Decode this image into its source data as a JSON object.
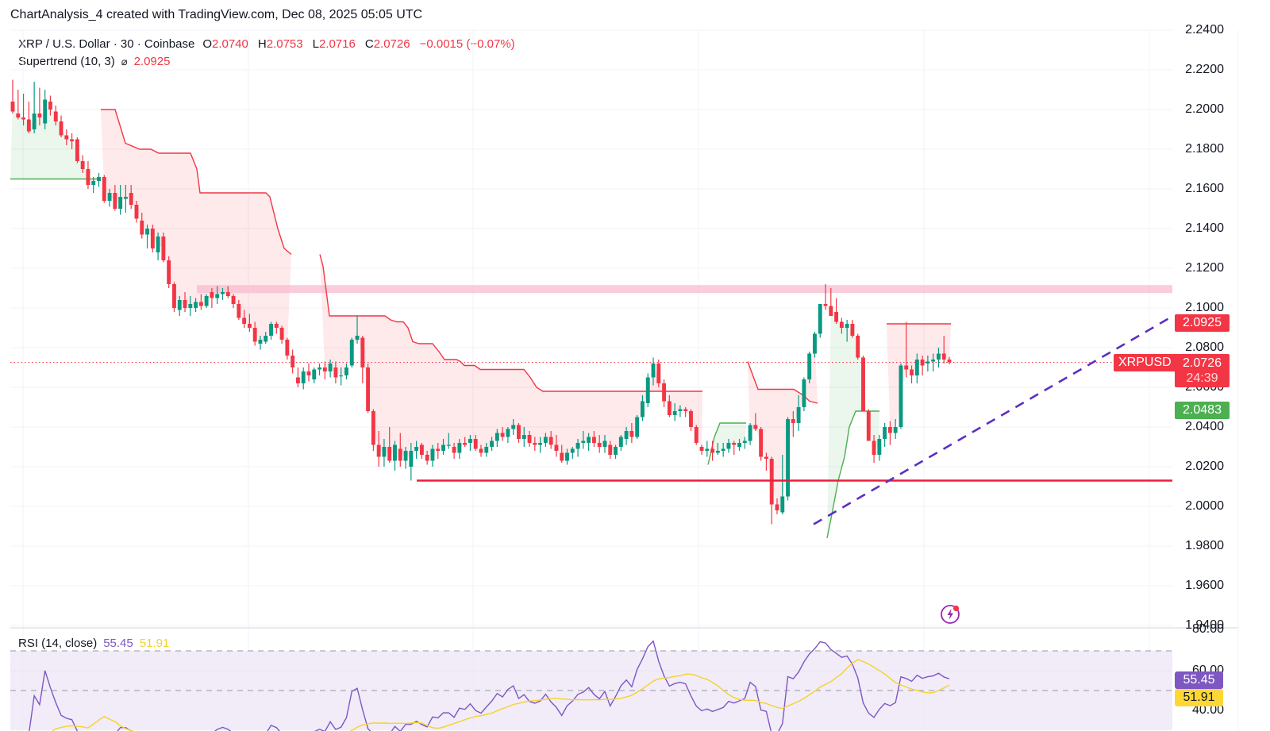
{
  "caption": "ChartAnalysis_4 created with TradingView.com, Dec 08, 2025 05:05 UTC",
  "legend": {
    "symbol": "XRP / U.S. Dollar · 30 · Coinbase",
    "o_label": "O",
    "o": "2.0740",
    "h_label": "H",
    "h": "2.0753",
    "l_label": "L",
    "l": "2.0716",
    "c_label": "C",
    "c": "2.0726",
    "change": "−0.0015 (−0.07%)",
    "indicator": "Supertrend (10, 3)",
    "indicator_icon": "⌀",
    "indicator_value": "2.0925"
  },
  "rsi_legend": {
    "label": "RSI (14, close)",
    "rsi": "55.45",
    "ma": "51.91"
  },
  "price_axis": [
    "2.2400",
    "2.2200",
    "2.2000",
    "2.1800",
    "2.1600",
    "2.1400",
    "2.1200",
    "2.1000",
    "2.0800",
    "2.0600",
    "2.0400",
    "2.0200",
    "2.0000",
    "1.9800",
    "1.9600",
    "1.9400"
  ],
  "rsi_axis": [
    "80.00",
    "60.00",
    "40.00"
  ],
  "tags": {
    "supertrend": "2.0925",
    "symbol": "XRPUSD",
    "last_price": "2.0726",
    "countdown": "24:39",
    "green": "2.0483",
    "rsi": "55.45",
    "rsi_ma": "51.91"
  },
  "colors": {
    "up": "#089981",
    "down": "#f23645",
    "supertrend_up": "#4caf50",
    "supertrend_down": "#f23645",
    "resistance_zone": "#f8bbd0",
    "support_line": "#e91e3c",
    "trendline": "#5b2fc4",
    "rsi_line": "#7e57c2",
    "rsi_ma": "#f5d22a",
    "rsi_band": "#ede7f6"
  },
  "chart_data": {
    "type": "candlestick",
    "title": "XRP / U.S. Dollar · 30 · Coinbase",
    "timeframe": "30",
    "ylim": [
      1.94,
      2.24
    ],
    "yticks": [
      2.24,
      2.22,
      2.2,
      2.18,
      2.16,
      2.14,
      2.12,
      2.1,
      2.08,
      2.06,
      2.04,
      2.02,
      2.0,
      1.98,
      1.96,
      1.94
    ],
    "annotations": {
      "resistance_zone": [
        2.1075,
        2.1115
      ],
      "support_line": 2.013,
      "rising_trendline": {
        "from": [
          1025,
          1.991
        ],
        "to": [
          1478,
          2.096
        ]
      },
      "last_price": 2.0726
    },
    "candles": [
      [
        2.204,
        2.215,
        2.198,
        2.199
      ],
      [
        2.198,
        2.21,
        2.195,
        2.196
      ],
      [
        2.196,
        2.208,
        2.192,
        2.195
      ],
      [
        2.195,
        2.204,
        2.188,
        2.189
      ],
      [
        2.19,
        2.214,
        2.188,
        2.198
      ],
      [
        2.198,
        2.211,
        2.192,
        2.196
      ],
      [
        2.193,
        2.21,
        2.19,
        2.205
      ],
      [
        2.204,
        2.207,
        2.197,
        2.2
      ],
      [
        2.199,
        2.202,
        2.192,
        2.194
      ],
      [
        2.194,
        2.197,
        2.186,
        2.187
      ],
      [
        2.187,
        2.19,
        2.182,
        2.185
      ],
      [
        2.185,
        2.188,
        2.18,
        2.184
      ],
      [
        2.185,
        2.186,
        2.173,
        2.174
      ],
      [
        2.174,
        2.177,
        2.168,
        2.17
      ],
      [
        2.17,
        2.174,
        2.16,
        2.162
      ],
      [
        2.162,
        2.166,
        2.158,
        2.164
      ],
      [
        2.164,
        2.168,
        2.161,
        2.166
      ],
      [
        2.166,
        2.167,
        2.153,
        2.154
      ],
      [
        2.154,
        2.16,
        2.151,
        2.158
      ],
      [
        2.158,
        2.162,
        2.149,
        2.15
      ],
      [
        2.15,
        2.162,
        2.147,
        2.156
      ],
      [
        2.155,
        2.162,
        2.148,
        2.156
      ],
      [
        2.158,
        2.162,
        2.15,
        2.152
      ],
      [
        2.152,
        2.154,
        2.143,
        2.145
      ],
      [
        2.144,
        2.148,
        2.135,
        2.137
      ],
      [
        2.137,
        2.142,
        2.13,
        2.14
      ],
      [
        2.14,
        2.142,
        2.128,
        2.13
      ],
      [
        2.128,
        2.138,
        2.124,
        2.136
      ],
      [
        2.136,
        2.138,
        2.123,
        2.124
      ],
      [
        2.124,
        2.126,
        2.11,
        2.112
      ],
      [
        2.112,
        2.113,
        2.098,
        2.1
      ],
      [
        2.099,
        2.106,
        2.096,
        2.104
      ],
      [
        2.104,
        2.108,
        2.098,
        2.1
      ],
      [
        2.1,
        2.106,
        2.096,
        2.102
      ],
      [
        2.1,
        2.105,
        2.098,
        2.103
      ],
      [
        2.103,
        2.107,
        2.099,
        2.101
      ],
      [
        2.101,
        2.107,
        2.1,
        2.106
      ],
      [
        2.108,
        2.11,
        2.1,
        2.105
      ],
      [
        2.105,
        2.111,
        2.102,
        2.107
      ],
      [
        2.107,
        2.11,
        2.104,
        2.108
      ],
      [
        2.108,
        2.111,
        2.105,
        2.106
      ],
      [
        2.106,
        2.107,
        2.1,
        2.102
      ],
      [
        2.102,
        2.104,
        2.094,
        2.095
      ],
      [
        2.095,
        2.099,
        2.09,
        2.092
      ],
      [
        2.092,
        2.097,
        2.088,
        2.09
      ],
      [
        2.09,
        2.093,
        2.081,
        2.083
      ],
      [
        2.082,
        2.086,
        2.079,
        2.084
      ],
      [
        2.083,
        2.088,
        2.082,
        2.086
      ],
      [
        2.086,
        2.093,
        2.084,
        2.092
      ],
      [
        2.092,
        2.093,
        2.087,
        2.09
      ],
      [
        2.09,
        2.091,
        2.082,
        2.084
      ],
      [
        2.084,
        2.085,
        2.074,
        2.076
      ],
      [
        2.076,
        2.079,
        2.067,
        2.07
      ],
      [
        2.065,
        2.07,
        2.06,
        2.062
      ],
      [
        2.062,
        2.07,
        2.059,
        2.068
      ],
      [
        2.068,
        2.072,
        2.063,
        2.066
      ],
      [
        2.064,
        2.07,
        2.062,
        2.069
      ],
      [
        2.069,
        2.072,
        2.066,
        2.07
      ],
      [
        2.07,
        2.073,
        2.064,
        2.068
      ],
      [
        2.068,
        2.074,
        2.065,
        2.072
      ],
      [
        2.07,
        2.073,
        2.062,
        2.065
      ],
      [
        2.066,
        2.07,
        2.061,
        2.066
      ],
      [
        2.066,
        2.072,
        2.064,
        2.07
      ],
      [
        2.071,
        2.085,
        2.07,
        2.084
      ],
      [
        2.084,
        2.096,
        2.082,
        2.086
      ],
      [
        2.085,
        2.086,
        2.062,
        2.07
      ],
      [
        2.07,
        2.072,
        2.047,
        2.048
      ],
      [
        2.048,
        2.049,
        2.028,
        2.031
      ],
      [
        2.031,
        2.038,
        2.02,
        2.025
      ],
      [
        2.025,
        2.034,
        2.02,
        2.03
      ],
      [
        2.03,
        2.04,
        2.022,
        2.023
      ],
      [
        2.023,
        2.033,
        2.018,
        2.031
      ],
      [
        2.029,
        2.037,
        2.02,
        2.023
      ],
      [
        2.023,
        2.03,
        2.019,
        2.028
      ],
      [
        2.02,
        2.032,
        2.013,
        2.028
      ],
      [
        2.028,
        2.033,
        2.024,
        2.03
      ],
      [
        2.031,
        2.032,
        2.024,
        2.026
      ],
      [
        2.026,
        2.028,
        2.021,
        2.023
      ],
      [
        2.023,
        2.031,
        2.02,
        2.029
      ],
      [
        2.029,
        2.032,
        2.024,
        2.028
      ],
      [
        2.028,
        2.034,
        2.026,
        2.031
      ],
      [
        2.031,
        2.037,
        2.029,
        2.031
      ],
      [
        2.03,
        2.032,
        2.024,
        2.027
      ],
      [
        2.027,
        2.034,
        2.024,
        2.032
      ],
      [
        2.032,
        2.035,
        2.03,
        2.031
      ],
      [
        2.032,
        2.036,
        2.028,
        2.034
      ],
      [
        2.034,
        2.036,
        2.028,
        2.029
      ],
      [
        2.029,
        2.031,
        2.025,
        2.027
      ],
      [
        2.027,
        2.032,
        2.025,
        2.03
      ],
      [
        2.03,
        2.035,
        2.028,
        2.033
      ],
      [
        2.033,
        2.039,
        2.03,
        2.037
      ],
      [
        2.037,
        2.04,
        2.033,
        2.035
      ],
      [
        2.035,
        2.04,
        2.032,
        2.039
      ],
      [
        2.039,
        2.044,
        2.036,
        2.041
      ],
      [
        2.041,
        2.042,
        2.032,
        2.034
      ],
      [
        2.034,
        2.04,
        2.03,
        2.036
      ],
      [
        2.036,
        2.038,
        2.03,
        2.032
      ],
      [
        2.032,
        2.035,
        2.028,
        2.031
      ],
      [
        2.031,
        2.035,
        2.027,
        2.032
      ],
      [
        2.032,
        2.037,
        2.03,
        2.035
      ],
      [
        2.035,
        2.038,
        2.029,
        2.031
      ],
      [
        2.031,
        2.036,
        2.025,
        2.028
      ],
      [
        2.027,
        2.031,
        2.022,
        2.023
      ],
      [
        2.023,
        2.029,
        2.021,
        2.027
      ],
      [
        2.027,
        2.03,
        2.024,
        2.029
      ],
      [
        2.029,
        2.034,
        2.025,
        2.032
      ],
      [
        2.032,
        2.038,
        2.029,
        2.033
      ],
      [
        2.032,
        2.037,
        2.028,
        2.035
      ],
      [
        2.035,
        2.038,
        2.03,
        2.032
      ],
      [
        2.032,
        2.036,
        2.027,
        2.03
      ],
      [
        2.03,
        2.036,
        2.027,
        2.033
      ],
      [
        2.031,
        2.033,
        2.024,
        2.026
      ],
      [
        2.026,
        2.031,
        2.024,
        2.03
      ],
      [
        2.03,
        2.036,
        2.028,
        2.035
      ],
      [
        2.034,
        2.04,
        2.031,
        2.038
      ],
      [
        2.038,
        2.042,
        2.032,
        2.035
      ],
      [
        2.035,
        2.046,
        2.034,
        2.045
      ],
      [
        2.045,
        2.056,
        2.043,
        2.053
      ],
      [
        2.052,
        2.067,
        2.05,
        2.065
      ],
      [
        2.065,
        2.075,
        2.061,
        2.072
      ],
      [
        2.072,
        2.074,
        2.06,
        2.062
      ],
      [
        2.062,
        2.064,
        2.05,
        2.053
      ],
      [
        2.053,
        2.056,
        2.045,
        2.046
      ],
      [
        2.046,
        2.052,
        2.043,
        2.048
      ],
      [
        2.048,
        2.051,
        2.045,
        2.049
      ],
      [
        2.049,
        2.05,
        2.045,
        2.048
      ],
      [
        2.048,
        2.049,
        2.038,
        2.04
      ],
      [
        2.04,
        2.041,
        2.031,
        2.032
      ],
      [
        2.03,
        2.031,
        2.026,
        2.028
      ],
      [
        2.028,
        2.033,
        2.025,
        2.029
      ],
      [
        2.029,
        2.033,
        2.023,
        2.027
      ],
      [
        2.027,
        2.032,
        2.026,
        2.028
      ],
      [
        2.028,
        2.032,
        2.025,
        2.029
      ],
      [
        2.029,
        2.034,
        2.027,
        2.032
      ],
      [
        2.032,
        2.033,
        2.026,
        2.031
      ],
      [
        2.03,
        2.034,
        2.028,
        2.032
      ],
      [
        2.032,
        2.035,
        2.029,
        2.033
      ],
      [
        2.033,
        2.042,
        2.031,
        2.041
      ],
      [
        2.041,
        2.047,
        2.038,
        2.039
      ],
      [
        2.039,
        2.04,
        2.023,
        2.025
      ],
      [
        2.025,
        2.027,
        2.018,
        2.024
      ],
      [
        2.024,
        2.025,
        1.991,
        2.001
      ],
      [
        2.001,
        2.004,
        1.996,
        1.998
      ],
      [
        1.997,
        2.026,
        1.996,
        2.005
      ],
      [
        2.005,
        2.045,
        2.003,
        2.044
      ],
      [
        2.044,
        2.048,
        2.035,
        2.042
      ],
      [
        2.042,
        2.056,
        2.038,
        2.05
      ],
      [
        2.05,
        2.065,
        2.048,
        2.064
      ],
      [
        2.064,
        2.078,
        2.062,
        2.077
      ],
      [
        2.077,
        2.088,
        2.075,
        2.087
      ],
      [
        2.087,
        2.102,
        2.085,
        2.102
      ],
      [
        2.102,
        2.112,
        2.099,
        2.101
      ],
      [
        2.101,
        2.11,
        2.096,
        2.096
      ],
      [
        2.098,
        2.105,
        2.092,
        2.093
      ],
      [
        2.093,
        2.095,
        2.087,
        2.09
      ],
      [
        2.09,
        2.094,
        2.083,
        2.092
      ],
      [
        2.092,
        2.094,
        2.085,
        2.086
      ],
      [
        2.086,
        2.087,
        2.074,
        2.075
      ],
      [
        2.075,
        2.076,
        2.048,
        2.048
      ],
      [
        2.048,
        2.049,
        2.033,
        2.033
      ],
      [
        2.033,
        2.036,
        2.022,
        2.026
      ],
      [
        2.026,
        2.036,
        2.023,
        2.034
      ],
      [
        2.034,
        2.042,
        2.03,
        2.04
      ],
      [
        2.04,
        2.043,
        2.031,
        2.037
      ],
      [
        2.037,
        2.044,
        2.034,
        2.04
      ],
      [
        2.04,
        2.072,
        2.039,
        2.071
      ],
      [
        2.071,
        2.093,
        2.065,
        2.069
      ],
      [
        2.069,
        2.071,
        2.062,
        2.066
      ],
      [
        2.066,
        2.077,
        2.062,
        2.074
      ],
      [
        2.074,
        2.076,
        2.066,
        2.071
      ],
      [
        2.072,
        2.076,
        2.068,
        2.073
      ],
      [
        2.073,
        2.077,
        2.068,
        2.074
      ],
      [
        2.074,
        2.08,
        2.07,
        2.077
      ],
      [
        2.077,
        2.086,
        2.072,
        2.074
      ],
      [
        2.074,
        2.0753,
        2.0716,
        2.0726
      ]
    ],
    "supertrend": {
      "down_segments": [
        [
          [
            127,
            2.2
          ],
          [
            145,
            2.2
          ],
          [
            158,
            2.183
          ],
          [
            176,
            2.18
          ],
          [
            190,
            2.18
          ],
          [
            200,
            2.178
          ],
          [
            240,
            2.178
          ],
          [
            248,
            2.17
          ],
          [
            252,
            2.158
          ],
          [
            300,
            2.158
          ],
          [
            335,
            2.158
          ],
          [
            340,
            2.156
          ],
          [
            350,
            2.14
          ],
          [
            358,
            2.13
          ],
          [
            367,
            2.127
          ]
        ],
        [
          [
            403,
            2.127
          ],
          [
            407,
            2.121
          ],
          [
            415,
            2.096
          ],
          [
            485,
            2.096
          ],
          [
            492,
            2.094
          ],
          [
            500,
            2.093
          ],
          [
            508,
            2.093
          ],
          [
            514,
            2.09
          ],
          [
            520,
            2.083
          ],
          [
            528,
            2.082
          ],
          [
            545,
            2.082
          ],
          [
            553,
            2.078
          ],
          [
            560,
            2.074
          ],
          [
            575,
            2.074
          ],
          [
            580,
            2.073
          ],
          [
            585,
            2.071
          ],
          [
            598,
            2.071
          ],
          [
            605,
            2.069
          ],
          [
            660,
            2.069
          ],
          [
            668,
            2.065
          ],
          [
            676,
            2.06
          ],
          [
            684,
            2.058
          ],
          [
            885,
            2.058
          ]
        ],
        [
          [
            942,
            2.073
          ],
          [
            955,
            2.059
          ],
          [
            1000,
            2.059
          ],
          [
            1012,
            2.056
          ],
          [
            1020,
            2.053
          ],
          [
            1030,
            2.052
          ]
        ],
        [
          [
            1117,
            2.092
          ],
          [
            1198,
            2.092
          ]
        ]
      ],
      "up_segments": [
        [
          [
            13,
            2.165
          ],
          [
            122,
            2.165
          ]
        ],
        [
          [
            892,
            2.021
          ],
          [
            900,
            2.035
          ],
          [
            907,
            2.042
          ],
          [
            940,
            2.042
          ]
        ],
        [
          [
            1042,
            1.984
          ],
          [
            1048,
            1.996
          ],
          [
            1056,
            2.013
          ],
          [
            1064,
            2.025
          ],
          [
            1070,
            2.04
          ],
          [
            1078,
            2.048
          ],
          [
            1108,
            2.048
          ]
        ]
      ]
    },
    "rsi": {
      "period": 14,
      "overbought": 70,
      "oversold": 30,
      "middle": 50,
      "ylim": [
        30,
        80
      ],
      "last": 55.45,
      "ma_last": 51.91
    }
  }
}
